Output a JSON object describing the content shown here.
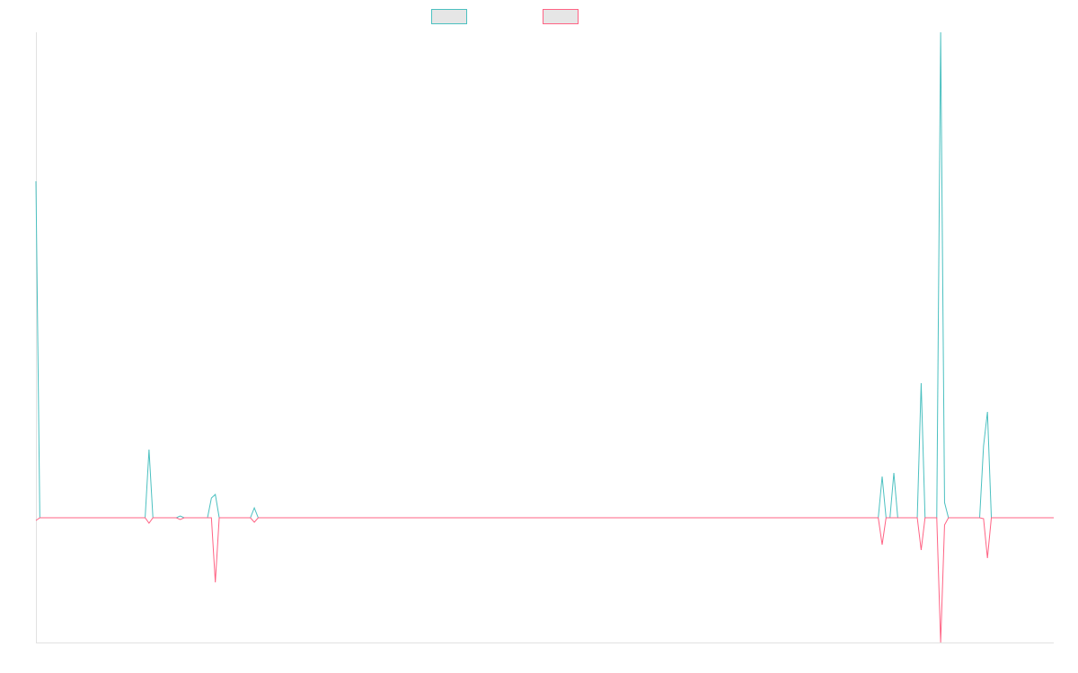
{
  "chart_data": {
    "type": "line",
    "title": "",
    "xlabel": "",
    "ylabel": "",
    "num_points": 262,
    "ylim": [
      -139,
      541
    ],
    "grid": false,
    "legend": {
      "position": "top"
    },
    "series": [
      {
        "name": "",
        "color": "#4bc0c0",
        "points": {
          "0": 375,
          "29": 76,
          "37": 2,
          "45": 22,
          "46": 26,
          "56": 11,
          "217": 46,
          "220": 50,
          "227": 150,
          "232": 541,
          "233": 17,
          "243": 80,
          "244": 118
        }
      },
      {
        "name": "",
        "color": "#ff6384",
        "points": {
          "0": -3,
          "29": -6,
          "37": -2,
          "46": -72,
          "56": -5,
          "217": -30,
          "227": -36,
          "232": -139,
          "233": -8,
          "243": -1,
          "244": -45
        }
      }
    ]
  }
}
